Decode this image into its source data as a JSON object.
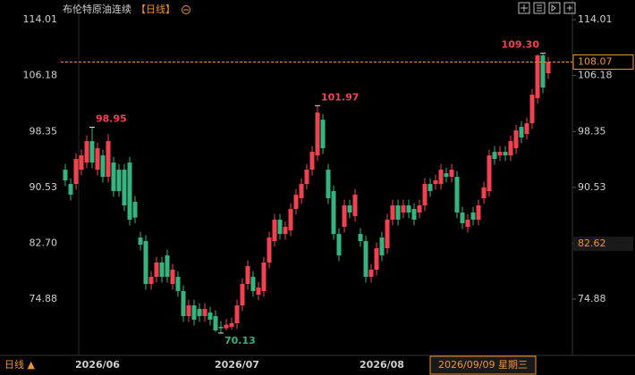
{
  "header": {
    "title": "布伦特原油连续",
    "period": "【日线】"
  },
  "footer": {
    "period_label": "日线 ▲"
  },
  "chart_data": {
    "type": "candlestick",
    "up_color": "#f0424f",
    "down_color": "#36b37e",
    "ylim": [
      67.38,
      116.76
    ],
    "yticks": [
      114.01,
      106.18,
      98.35,
      90.53,
      {
        "value": 82.7,
        "label": "82.70"
      },
      74.88
    ],
    "grid": false,
    "open": [
      93,
      91,
      91,
      93,
      94,
      97,
      93,
      95,
      92,
      94,
      93,
      93,
      94,
      88.5,
      83.5,
      83,
      77,
      78,
      80,
      81,
      77,
      78,
      76,
      72.5,
      74,
      73.5,
      72.5,
      73,
      72.5,
      71,
      70.8,
      71,
      71.5,
      74,
      77,
      78,
      75.5,
      76,
      80,
      83,
      86,
      84,
      84.5,
      87.5,
      89,
      91,
      93,
      95,
      100,
      93,
      90,
      84,
      85,
      88,
      86.5,
      84,
      83,
      78,
      79,
      83.5,
      82,
      86,
      88,
      87,
      88,
      87.5,
      87,
      88,
      91,
      91,
      91,
      92.5,
      92,
      92,
      87,
      85,
      87,
      86,
      89,
      90,
      95.5,
      95,
      95.5,
      95,
      96,
      99,
      98,
      99.5,
      103,
      109,
      106.5
    ],
    "high": [
      93.8,
      91.8,
      95.3,
      95.8,
      97.8,
      98.95,
      96.8,
      95.8,
      98,
      94.8,
      93.8,
      93.8,
      94.8,
      89.3,
      84.3,
      83.8,
      78.8,
      80.8,
      80.8,
      81.8,
      79.8,
      78.8,
      76.8,
      74.8,
      74.8,
      74.3,
      74.3,
      73.8,
      73.3,
      71.8,
      72.1,
      72.3,
      74.8,
      77.8,
      80.3,
      78.8,
      77.3,
      80.8,
      84.3,
      86.8,
      86.8,
      85.8,
      88.3,
      90.3,
      91.8,
      93.8,
      96.3,
      101.97,
      100.8,
      93.8,
      90.8,
      84.8,
      88.8,
      88.8,
      90.3,
      84.8,
      83.8,
      79.8,
      82.8,
      84.3,
      86.8,
      88.8,
      88.8,
      88.8,
      88.8,
      88.3,
      88.8,
      91.8,
      91.8,
      92.3,
      93.8,
      93.3,
      93.8,
      92.8,
      87.8,
      86.8,
      87.8,
      88.8,
      91.3,
      95.8,
      96.3,
      96.3,
      96.3,
      97.8,
      99.3,
      99.8,
      100.3,
      104.3,
      109.1,
      109.3,
      108.8
    ],
    "low": [
      90.7,
      88.7,
      90.2,
      92.2,
      93.2,
      93.2,
      92.2,
      91.2,
      91.2,
      89.2,
      89.2,
      87.2,
      85.2,
      85.5,
      81.7,
      76.2,
      76.2,
      77.2,
      77.2,
      77.2,
      76.2,
      75.2,
      71.7,
      71.7,
      71.2,
      71.7,
      71.7,
      71.2,
      70.3,
      70.13,
      70.5,
      70.6,
      70.7,
      73.2,
      76.2,
      75.2,
      74.7,
      75.2,
      79.2,
      82.2,
      83.2,
      83.2,
      83.7,
      86.7,
      88.2,
      90.2,
      92.2,
      94.2,
      95.2,
      88.2,
      83.2,
      80.2,
      84.2,
      86.2,
      85.7,
      82.2,
      77.2,
      77.2,
      78.2,
      80.2,
      81.2,
      85.2,
      85.2,
      86.2,
      86.2,
      85.2,
      86.2,
      87.2,
      89.2,
      90.2,
      90.2,
      91.2,
      91.2,
      86.2,
      84.7,
      84.2,
      85.2,
      85.2,
      88.2,
      89.2,
      93.7,
      94.2,
      94.2,
      94.2,
      95.2,
      96.7,
      97.2,
      98.7,
      102.2,
      103.7,
      105.7
    ],
    "close": [
      91.5,
      89.5,
      94.5,
      95,
      97,
      94,
      96,
      92,
      97,
      90,
      90,
      88,
      86,
      86.3,
      82.5,
      77,
      78,
      80,
      78,
      78,
      79,
      76,
      72.5,
      74,
      72,
      72.5,
      73.5,
      72,
      70.5,
      70.8,
      71.3,
      71.5,
      74,
      77,
      79.5,
      76,
      76.5,
      80,
      83.5,
      86,
      84,
      85,
      87.5,
      89.5,
      91,
      93,
      95.5,
      101,
      96,
      89,
      84,
      81,
      88,
      87,
      89.5,
      83,
      78,
      79,
      82,
      81,
      86,
      88,
      86,
      88,
      87,
      86,
      88,
      91,
      90,
      91.5,
      93,
      92,
      93,
      87,
      85.5,
      86,
      86,
      88,
      90.5,
      95,
      94.5,
      95.5,
      95,
      97,
      98.5,
      97.5,
      99.5,
      103.5,
      109,
      104.5,
      108.07
    ],
    "xlabels": [
      {
        "index": 6,
        "label": "2026/06"
      },
      {
        "index": 32,
        "label": "2026/07"
      },
      {
        "index": 59,
        "label": "2026/08"
      }
    ],
    "annotations": [
      {
        "index": 5,
        "value": 98.95,
        "kind": "high"
      },
      {
        "index": 47,
        "value": 101.97,
        "kind": "high"
      },
      {
        "index": 29,
        "value": 70.13,
        "kind": "low"
      },
      {
        "index": 89,
        "value": 109.3,
        "label": "109.30",
        "kind": "high"
      }
    ],
    "crosshair": {
      "price": 82.62,
      "date": "2026/09/09 星期三"
    }
  }
}
